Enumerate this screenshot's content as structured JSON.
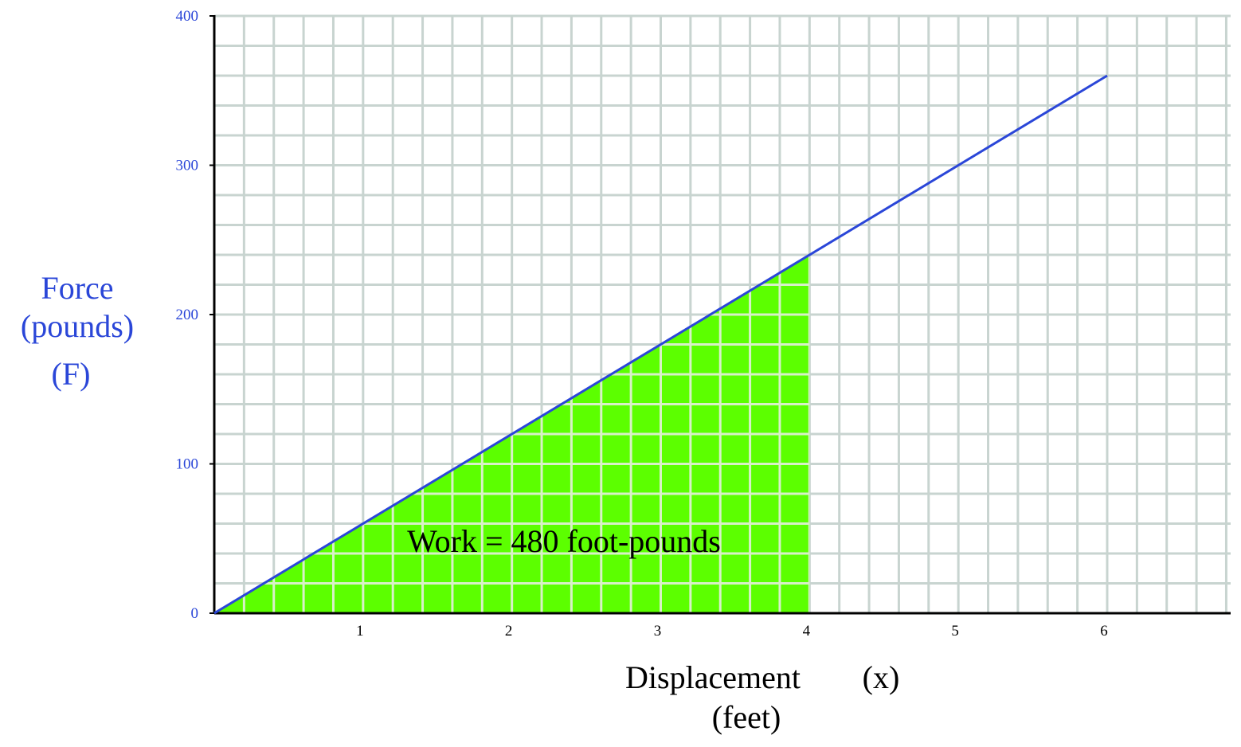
{
  "chart_data": {
    "type": "area",
    "x": [
      0,
      6
    ],
    "y": [
      0,
      360
    ],
    "shaded_region": {
      "x_from": 0,
      "x_to": 4,
      "y_at_end": 240
    },
    "annotation": "Work = 480 foot-pounds",
    "ylabel_lines": [
      "Force",
      "(pounds)",
      "(F)"
    ],
    "xlabel": "Displacement",
    "xlabel_symbol": "(x)",
    "xlabel_unit": "(feet)",
    "xlim": [
      0,
      6.8
    ],
    "ylim": [
      0,
      400
    ],
    "xticks": [
      "1",
      "2",
      "3",
      "4",
      "5",
      "6"
    ],
    "yticks": [
      "0",
      "100",
      "200",
      "300",
      "400"
    ],
    "grid": true,
    "grid_minor_x": 0.2,
    "grid_minor_y": 20,
    "colors": {
      "line": "#2a46d8",
      "fill": "#5cff00",
      "grid": "#c8d4d0",
      "axis": "#000000",
      "label_blue": "#2a46d8",
      "text": "#000000"
    }
  }
}
